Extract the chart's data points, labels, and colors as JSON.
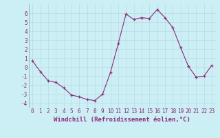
{
  "x": [
    0,
    1,
    2,
    3,
    4,
    5,
    6,
    7,
    8,
    9,
    10,
    11,
    12,
    13,
    14,
    15,
    16,
    17,
    18,
    19,
    20,
    21,
    22,
    23
  ],
  "y": [
    0.7,
    -0.5,
    -1.5,
    -1.7,
    -2.3,
    -3.1,
    -3.3,
    -3.6,
    -3.7,
    -3.0,
    -0.6,
    2.6,
    5.9,
    5.3,
    5.5,
    5.4,
    6.4,
    5.5,
    4.4,
    2.2,
    0.1,
    -1.1,
    -1.0,
    0.2
  ],
  "line_color": "#892b7a",
  "marker": "+",
  "xlabel": "Windchill (Refroidissement éolien,°C)",
  "xlim": [
    -0.5,
    23.5
  ],
  "ylim": [
    -4.5,
    7.0
  ],
  "yticks": [
    -4,
    -3,
    -2,
    -1,
    0,
    1,
    2,
    3,
    4,
    5,
    6
  ],
  "xticks": [
    0,
    1,
    2,
    3,
    4,
    5,
    6,
    7,
    8,
    9,
    10,
    11,
    12,
    13,
    14,
    15,
    16,
    17,
    18,
    19,
    20,
    21,
    22,
    23
  ],
  "bg_color": "#cceef5",
  "grid_color": "#bbdde6",
  "label_fontsize": 6.5,
  "tick_fontsize": 5.5,
  "xlabel_fontsize": 6.5
}
